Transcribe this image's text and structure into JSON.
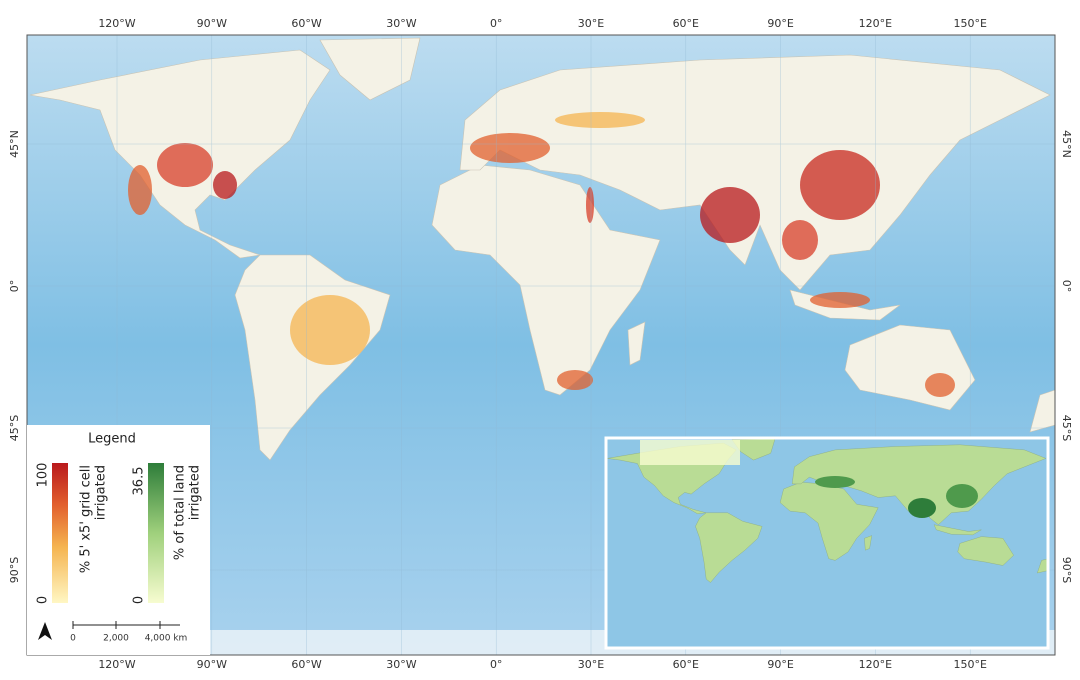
{
  "graticule": {
    "longitudes": [
      "120°W",
      "90°W",
      "60°W",
      "30°W",
      "0°",
      "30°E",
      "60°E",
      "90°E",
      "120°E",
      "150°E"
    ],
    "latitudes": [
      "45°N",
      "0°",
      "45°S",
      "90°S"
    ]
  },
  "legend": {
    "title": "Legend",
    "irrigated_cell": {
      "max": 100,
      "min": 0,
      "caption": [
        "% 5' x5' grid cell",
        "irrigated"
      ]
    },
    "total_land": {
      "max": 36.5,
      "min": 0,
      "caption": [
        "% of total land",
        "irrigated"
      ]
    }
  },
  "scale_bar": [
    "0",
    "2,000",
    "4,000 km"
  ]
}
